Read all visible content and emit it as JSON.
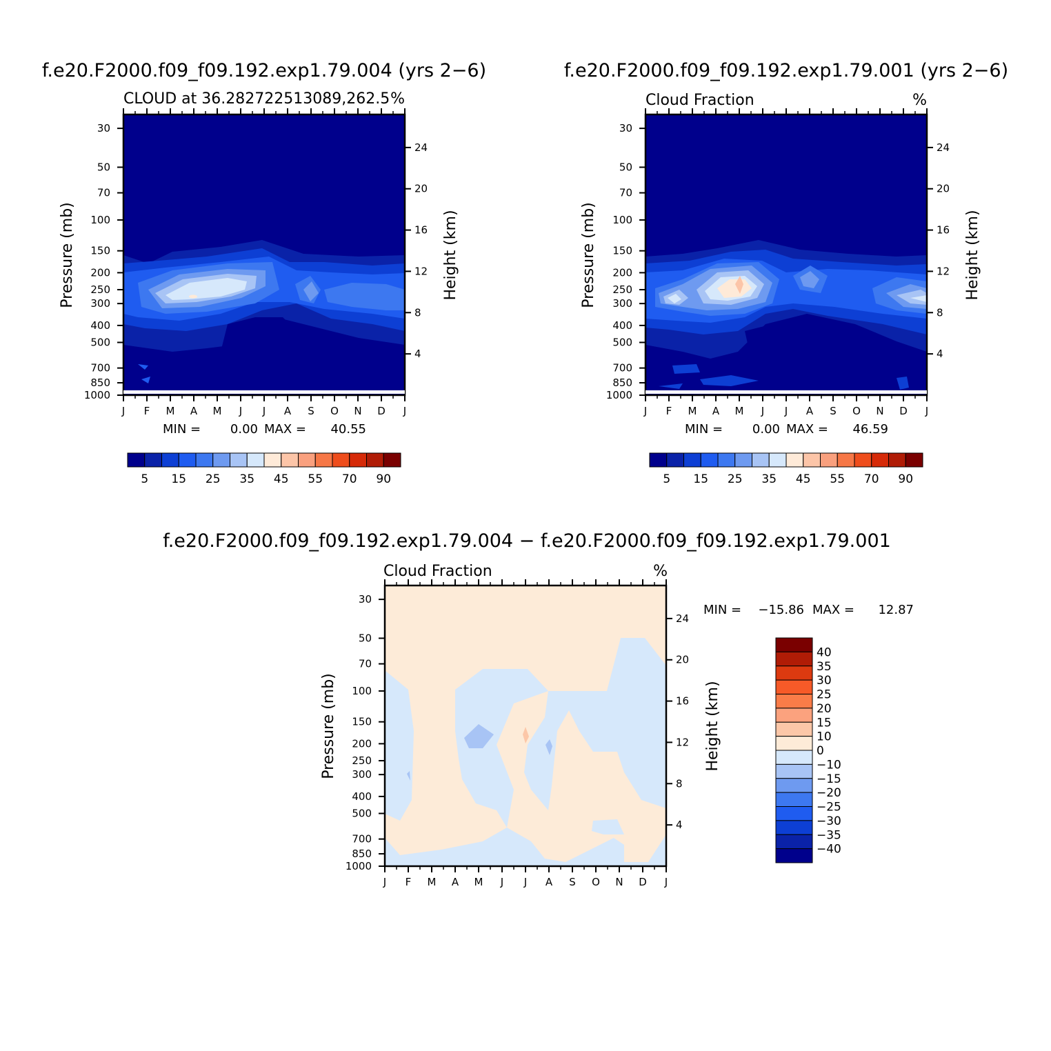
{
  "chart_data": [
    {
      "type": "heatmap",
      "title": "f.e20.F2000.f09_f09.192.exp1.79.004 (yrs 2−6)",
      "subtitle_left": "CLOUD at 36.282722513089,262.5",
      "subtitle_right": "%",
      "ylabel": "Pressure (mb)",
      "y2label": "Height (km)",
      "x_ticks": [
        "J",
        "F",
        "M",
        "A",
        "M",
        "J",
        "J",
        "A",
        "S",
        "O",
        "N",
        "D",
        "J"
      ],
      "y_ticks": [
        30,
        50,
        70,
        100,
        150,
        200,
        250,
        300,
        400,
        500,
        700,
        850,
        1000
      ],
      "y2_ticks": [
        24,
        20,
        16,
        12,
        8,
        4
      ],
      "stats": {
        "min_label": "MIN =",
        "min": "0.00",
        "max_label": "MAX =",
        "max": "40.55"
      },
      "peak": {
        "month": 3.2,
        "pressure": 250,
        "value": 40.55
      },
      "colorbar_labels": [
        "5",
        "15",
        "25",
        "35",
        "45",
        "55",
        "70",
        "90"
      ]
    },
    {
      "type": "heatmap",
      "title": "f.e20.F2000.f09_f09.192.exp1.79.001 (yrs 2−6)",
      "subtitle_left": "Cloud Fraction",
      "subtitle_right": "%",
      "ylabel": "Pressure (mb)",
      "y2label": "Height (km)",
      "x_ticks": [
        "J",
        "F",
        "M",
        "A",
        "M",
        "J",
        "J",
        "A",
        "S",
        "O",
        "N",
        "D",
        "J"
      ],
      "y_ticks": [
        30,
        50,
        70,
        100,
        150,
        200,
        250,
        300,
        400,
        500,
        700,
        850,
        1000
      ],
      "y2_ticks": [
        24,
        20,
        16,
        12,
        8,
        4
      ],
      "stats": {
        "min_label": "MIN =",
        "min": "0.00",
        "max_label": "MAX =",
        "max": "46.59"
      },
      "peak": {
        "month": 4.0,
        "pressure": 250,
        "value": 46.59
      },
      "colorbar_labels": [
        "5",
        "15",
        "25",
        "35",
        "45",
        "55",
        "70",
        "90"
      ]
    },
    {
      "type": "heatmap",
      "title": "f.e20.F2000.f09_f09.192.exp1.79.004 − f.e20.F2000.f09_f09.192.exp1.79.001",
      "subtitle_left": "Cloud Fraction",
      "subtitle_right": "%",
      "ylabel": "Pressure (mb)",
      "y2label": "Height (km)",
      "x_ticks": [
        "J",
        "F",
        "M",
        "A",
        "M",
        "J",
        "J",
        "A",
        "S",
        "O",
        "N",
        "D",
        "J"
      ],
      "y_ticks": [
        30,
        50,
        70,
        100,
        150,
        200,
        250,
        300,
        400,
        500,
        700,
        850,
        1000
      ],
      "y2_ticks": [
        24,
        20,
        16,
        12,
        8,
        4
      ],
      "stats": {
        "min_label": "MIN =",
        "min": "−15.86",
        "max_label": "MAX =",
        "max": "12.87"
      },
      "colorbar_labels": [
        "40",
        "35",
        "30",
        "25",
        "20",
        "15",
        "10",
        "0",
        "−10",
        "−15",
        "−20",
        "−25",
        "−30",
        "−35",
        "−40"
      ]
    }
  ],
  "colors": {
    "seq": [
      "#00008c",
      "#0a22a8",
      "#0d3fd4",
      "#1f5cf0",
      "#3d78f0",
      "#6e9af0",
      "#a8c4f5",
      "#d6e8fb",
      "#feead8",
      "#fcc5a8",
      "#f9a07e",
      "#f67746",
      "#ee4d1c",
      "#d62a08",
      "#b01c06",
      "#7a0000"
    ],
    "div": [
      "#7a0000",
      "#b01c06",
      "#dc3a10",
      "#f65a28",
      "#fa7c48",
      "#fba27e",
      "#fcc7a8",
      "#fdebd8",
      "#d6e8fb",
      "#a8c4f5",
      "#6e9af0",
      "#3d78f0",
      "#1f5cf0",
      "#0d3fd4",
      "#0a22a8",
      "#00008c"
    ]
  }
}
